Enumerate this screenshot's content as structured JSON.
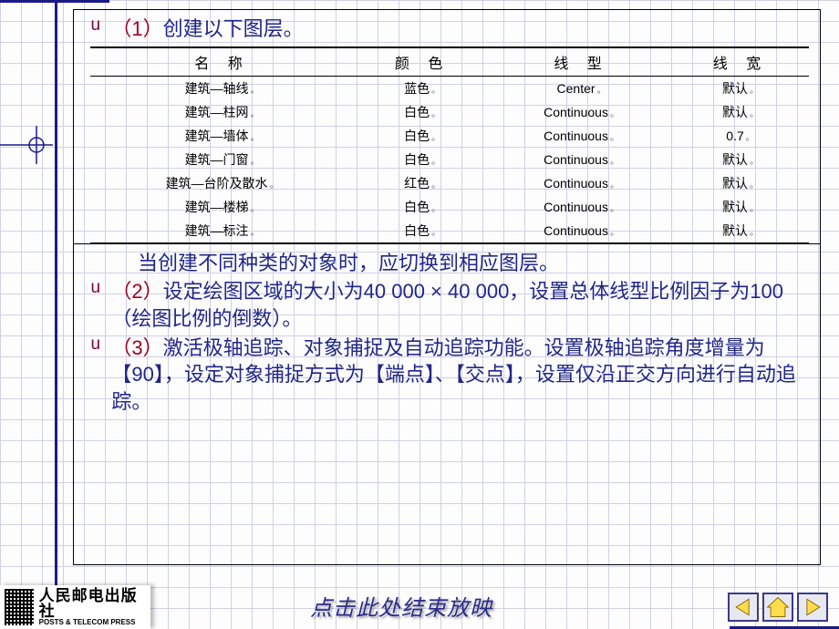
{
  "colors": {
    "grid_minor": "#d0d0e8",
    "grid_major": "#7a7aac",
    "corner_line": "#1a1a8a",
    "bullet": "#800040",
    "body_text": "#212688",
    "nav_fill": "#ffdc4a",
    "nav_border": "#3a3a8a"
  },
  "section1": {
    "bullet": "u",
    "num": "（1）",
    "text": "创建以下图层。"
  },
  "table": {
    "headers": [
      "名 称",
      "颜 色",
      "线 型",
      "线 宽"
    ],
    "rows": [
      {
        "name": "建筑—轴线",
        "color": "蓝色",
        "linetype": "Center",
        "width": "默认"
      },
      {
        "name": "建筑—柱网",
        "color": "白色",
        "linetype": "Continuous",
        "width": "默认"
      },
      {
        "name": "建筑—墙体",
        "color": "白色",
        "linetype": "Continuous",
        "width": "0.7"
      },
      {
        "name": "建筑—门窗",
        "color": "白色",
        "linetype": "Continuous",
        "width": "默认"
      },
      {
        "name": "建筑—台阶及散水",
        "color": "红色",
        "linetype": "Continuous",
        "width": "默认"
      },
      {
        "name": "建筑—楼梯",
        "color": "白色",
        "linetype": "Continuous",
        "width": "默认"
      },
      {
        "name": "建筑—标注",
        "color": "白色",
        "linetype": "Continuous",
        "width": "默认"
      }
    ]
  },
  "section2": {
    "intro": "当创建不同种类的对象时，应切换到相应图层。",
    "items": [
      {
        "bullet": "u",
        "num": "（2）",
        "text": "设定绘图区域的大小为40 000 × 40 000，设置总体线型比例因子为100（绘图比例的倒数）。"
      },
      {
        "bullet": "u",
        "num": "（3）",
        "text": "激活极轴追踪、对象捕捉及自动追踪功能。设置极轴追踪角度增量为【90】，设定对象捕捉方式为【端点】、【交点】，设置仅沿正交方向进行自动追踪。"
      }
    ]
  },
  "logo": {
    "cn": "人民邮电出版社",
    "en": "POSTS & TELECOM PRESS"
  },
  "footer_link": "点击此处结束放映",
  "nav": {
    "prev": "prev-button",
    "home": "home-button",
    "next": "next-button"
  }
}
